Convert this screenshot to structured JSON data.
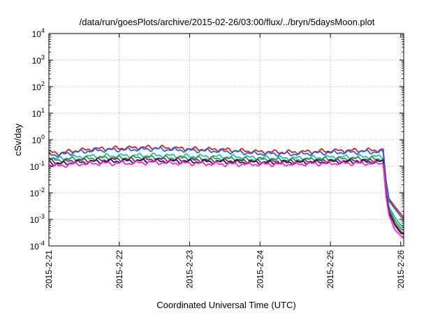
{
  "chart_data": {
    "type": "line",
    "title": "/data/run/goesPlots/archive/2015-02-26/03:00/flux/../bryn/5daysMoon.plot",
    "xlabel": "Coordinated Universal Time (UTC)",
    "ylabel": "cSv/day",
    "x_scale": "time",
    "y_scale": "log",
    "xlim": [
      "2015-02-21T00:00",
      "2015-02-26T01:00"
    ],
    "ylim": [
      0.0001,
      10000
    ],
    "x_ticks": [
      "2015-2-21",
      "2015-2-22",
      "2015-2-23",
      "2015-2-24",
      "2015-2-25",
      "2015-2-26"
    ],
    "y_ticks": [
      {
        "base": "10",
        "exp": "-4"
      },
      {
        "base": "10",
        "exp": "-3"
      },
      {
        "base": "10",
        "exp": "-2"
      },
      {
        "base": "10",
        "exp": "-1"
      },
      {
        "base": "10",
        "exp": "0"
      },
      {
        "base": "10",
        "exp": "1"
      },
      {
        "base": "10",
        "exp": "2"
      },
      {
        "base": "10",
        "exp": "3"
      },
      {
        "base": "10",
        "exp": "4"
      }
    ],
    "grid": true,
    "legend": "none",
    "series": [
      {
        "color": "#e41a1c",
        "x": [
          "2015-02-21T00:00",
          "2015-02-21T03:00",
          "2015-02-21T08:00",
          "2015-02-21T16:00",
          "2015-02-22T00:00",
          "2015-02-22T12:00",
          "2015-02-23T00:00",
          "2015-02-23T12:00",
          "2015-02-24T00:00",
          "2015-02-24T12:00",
          "2015-02-25T00:00",
          "2015-02-25T12:00",
          "2015-02-25T18:00",
          "2015-02-25T19:00",
          "2015-02-25T20:00",
          "2015-02-25T22:00",
          "2015-02-26T00:00",
          "2015-02-26T01:00"
        ],
        "y": [
          0.35,
          0.3,
          0.38,
          0.45,
          0.48,
          0.52,
          0.45,
          0.42,
          0.35,
          0.34,
          0.38,
          0.4,
          0.4,
          0.03,
          0.006,
          0.003,
          0.0016,
          0.0012
        ]
      },
      {
        "color": "#1e64e6",
        "x": [
          "2015-02-21T00:00",
          "2015-02-21T03:00",
          "2015-02-21T08:00",
          "2015-02-21T16:00",
          "2015-02-22T00:00",
          "2015-02-22T12:00",
          "2015-02-23T00:00",
          "2015-02-23T12:00",
          "2015-02-24T00:00",
          "2015-02-24T12:00",
          "2015-02-25T00:00",
          "2015-02-25T12:00",
          "2015-02-25T18:00",
          "2015-02-25T19:00",
          "2015-02-25T20:00",
          "2015-02-25T22:00",
          "2015-02-26T00:00",
          "2015-02-26T01:00"
        ],
        "y": [
          0.3,
          0.26,
          0.33,
          0.4,
          0.42,
          0.45,
          0.4,
          0.37,
          0.3,
          0.29,
          0.33,
          0.35,
          0.35,
          0.025,
          0.005,
          0.0025,
          0.0013,
          0.001
        ]
      },
      {
        "color": "#20c0b0",
        "x": [
          "2015-02-21T00:00",
          "2015-02-21T03:00",
          "2015-02-21T08:00",
          "2015-02-21T16:00",
          "2015-02-22T00:00",
          "2015-02-22T12:00",
          "2015-02-23T00:00",
          "2015-02-23T12:00",
          "2015-02-24T00:00",
          "2015-02-24T12:00",
          "2015-02-25T00:00",
          "2015-02-25T12:00",
          "2015-02-25T18:00",
          "2015-02-25T19:00",
          "2015-02-25T20:00",
          "2015-02-25T22:00",
          "2015-02-26T00:00",
          "2015-02-26T01:00"
        ],
        "y": [
          0.22,
          0.19,
          0.22,
          0.24,
          0.25,
          0.26,
          0.24,
          0.23,
          0.21,
          0.2,
          0.22,
          0.23,
          0.23,
          0.015,
          0.003,
          0.0012,
          0.0006,
          0.0005
        ]
      },
      {
        "color": "#3a9a3a",
        "x": [
          "2015-02-21T00:00",
          "2015-02-21T03:00",
          "2015-02-21T08:00",
          "2015-02-21T16:00",
          "2015-02-22T00:00",
          "2015-02-22T12:00",
          "2015-02-23T00:00",
          "2015-02-23T12:00",
          "2015-02-24T00:00",
          "2015-02-24T12:00",
          "2015-02-25T00:00",
          "2015-02-25T12:00",
          "2015-02-25T18:00",
          "2015-02-25T19:00",
          "2015-02-25T20:00",
          "2015-02-25T22:00",
          "2015-02-26T00:00",
          "2015-02-26T01:00"
        ],
        "y": [
          0.19,
          0.16,
          0.19,
          0.2,
          0.21,
          0.21,
          0.2,
          0.19,
          0.18,
          0.17,
          0.19,
          0.19,
          0.19,
          0.012,
          0.0025,
          0.0009,
          0.00045,
          0.0004
        ]
      },
      {
        "color": "#7a2a7a",
        "x": [
          "2015-02-21T00:00",
          "2015-02-21T03:00",
          "2015-02-21T08:00",
          "2015-02-21T16:00",
          "2015-02-22T00:00",
          "2015-02-22T12:00",
          "2015-02-23T00:00",
          "2015-02-23T12:00",
          "2015-02-24T00:00",
          "2015-02-24T12:00",
          "2015-02-25T00:00",
          "2015-02-25T12:00",
          "2015-02-25T18:00",
          "2015-02-25T19:00",
          "2015-02-25T20:00",
          "2015-02-25T22:00",
          "2015-02-26T00:00",
          "2015-02-26T01:00"
        ],
        "y": [
          0.16,
          0.14,
          0.16,
          0.17,
          0.18,
          0.18,
          0.17,
          0.16,
          0.15,
          0.15,
          0.16,
          0.16,
          0.16,
          0.01,
          0.002,
          0.0007,
          0.00035,
          0.0003
        ]
      },
      {
        "color": "#202040",
        "x": [
          "2015-02-21T00:00",
          "2015-02-21T03:00",
          "2015-02-21T08:00",
          "2015-02-21T16:00",
          "2015-02-22T00:00",
          "2015-02-22T12:00",
          "2015-02-23T00:00",
          "2015-02-23T12:00",
          "2015-02-24T00:00",
          "2015-02-24T12:00",
          "2015-02-25T00:00",
          "2015-02-25T12:00",
          "2015-02-25T18:00",
          "2015-02-25T19:00",
          "2015-02-25T20:00",
          "2015-02-25T22:00",
          "2015-02-26T00:00",
          "2015-02-26T01:00"
        ],
        "y": [
          0.14,
          0.12,
          0.14,
          0.15,
          0.16,
          0.16,
          0.15,
          0.15,
          0.14,
          0.14,
          0.15,
          0.15,
          0.15,
          0.009,
          0.0018,
          0.0006,
          0.0003,
          0.00028
        ]
      },
      {
        "color": "#ff20e0",
        "x": [
          "2015-02-21T00:00",
          "2015-02-21T03:00",
          "2015-02-21T08:00",
          "2015-02-21T16:00",
          "2015-02-22T00:00",
          "2015-02-22T12:00",
          "2015-02-23T00:00",
          "2015-02-23T12:00",
          "2015-02-24T00:00",
          "2015-02-24T12:00",
          "2015-02-25T00:00",
          "2015-02-25T12:00",
          "2015-02-25T18:00",
          "2015-02-25T19:00",
          "2015-02-25T20:00",
          "2015-02-25T22:00",
          "2015-02-26T00:00",
          "2015-02-26T01:00"
        ],
        "y": [
          0.12,
          0.1,
          0.12,
          0.13,
          0.13,
          0.14,
          0.13,
          0.12,
          0.12,
          0.12,
          0.13,
          0.13,
          0.13,
          0.007,
          0.0014,
          0.0004,
          0.00024,
          0.00022
        ]
      }
    ]
  }
}
